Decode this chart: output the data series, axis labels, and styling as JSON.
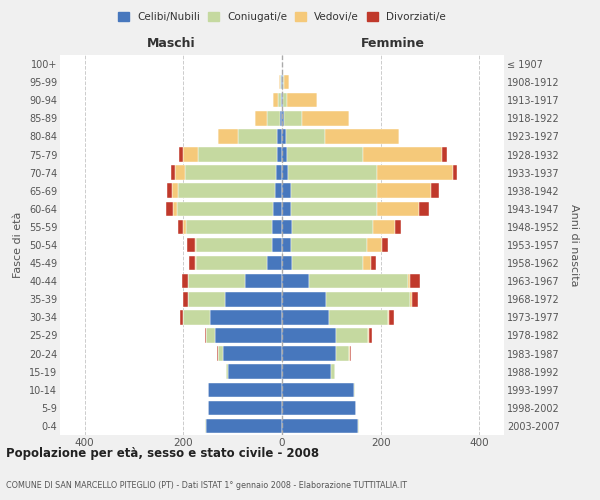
{
  "age_groups": [
    "0-4",
    "5-9",
    "10-14",
    "15-19",
    "20-24",
    "25-29",
    "30-34",
    "35-39",
    "40-44",
    "45-49",
    "50-54",
    "55-59",
    "60-64",
    "65-69",
    "70-74",
    "75-79",
    "80-84",
    "85-89",
    "90-94",
    "95-99",
    "100+"
  ],
  "birth_years": [
    "2003-2007",
    "1998-2002",
    "1993-1997",
    "1988-1992",
    "1983-1987",
    "1978-1982",
    "1973-1977",
    "1968-1972",
    "1963-1967",
    "1958-1962",
    "1953-1957",
    "1948-1952",
    "1943-1947",
    "1938-1942",
    "1933-1937",
    "1928-1932",
    "1923-1927",
    "1918-1922",
    "1913-1917",
    "1908-1912",
    "≤ 1907"
  ],
  "males": {
    "celibe": [
      155,
      150,
      150,
      110,
      120,
      135,
      145,
      115,
      75,
      30,
      20,
      20,
      18,
      15,
      12,
      10,
      10,
      5,
      3,
      2,
      1
    ],
    "coniugato": [
      1,
      1,
      1,
      3,
      10,
      20,
      55,
      75,
      115,
      145,
      155,
      175,
      195,
      195,
      185,
      160,
      80,
      25,
      5,
      2,
      0
    ],
    "vedovo": [
      0,
      0,
      0,
      0,
      0,
      0,
      1,
      1,
      1,
      2,
      2,
      5,
      8,
      12,
      20,
      30,
      40,
      25,
      10,
      2,
      0
    ],
    "divorziato": [
      0,
      0,
      0,
      0,
      1,
      2,
      5,
      10,
      12,
      12,
      15,
      10,
      15,
      12,
      8,
      8,
      0,
      0,
      0,
      0,
      0
    ]
  },
  "females": {
    "nubile": [
      155,
      150,
      145,
      100,
      110,
      110,
      95,
      90,
      55,
      20,
      18,
      20,
      18,
      18,
      12,
      10,
      8,
      5,
      3,
      2,
      1
    ],
    "coniugata": [
      1,
      1,
      2,
      8,
      25,
      65,
      120,
      170,
      200,
      145,
      155,
      165,
      175,
      175,
      180,
      155,
      80,
      35,
      8,
      2,
      0
    ],
    "vedova": [
      0,
      0,
      0,
      0,
      2,
      2,
      2,
      3,
      5,
      15,
      30,
      45,
      85,
      110,
      155,
      160,
      150,
      95,
      60,
      10,
      0
    ],
    "divorziata": [
      0,
      0,
      0,
      0,
      2,
      5,
      10,
      12,
      20,
      10,
      12,
      12,
      20,
      15,
      8,
      10,
      0,
      0,
      0,
      0,
      0
    ]
  },
  "colors": {
    "celibe": "#4777bd",
    "coniugato": "#c5d9a0",
    "vedovo": "#f5c97a",
    "divorziato": "#c0392b"
  },
  "xlim": 450,
  "title": "Popolazione per età, sesso e stato civile - 2008",
  "subtitle": "COMUNE DI SAN MARCELLO PITEGLIO (PT) - Dati ISTAT 1° gennaio 2008 - Elaborazione TUTTITALIA.IT",
  "legend_labels": [
    "Celibi/Nubili",
    "Coniugati/e",
    "Vedovi/e",
    "Divorziati/e"
  ],
  "xlabel_left": "Maschi",
  "xlabel_right": "Femmine",
  "ylabel_left": "Fasce di età",
  "ylabel_right": "Anni di nascita",
  "bg_color": "#f0f0f0",
  "plot_bg": "#ffffff"
}
